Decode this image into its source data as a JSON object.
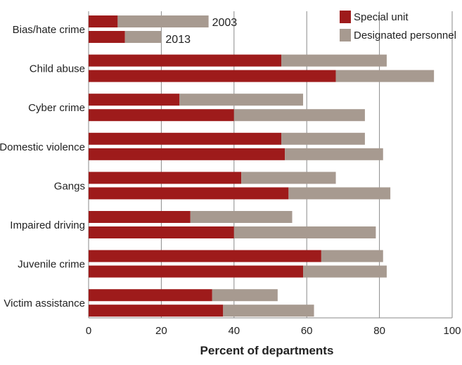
{
  "chart_data": {
    "type": "bar",
    "orientation": "horizontal",
    "stacked": true,
    "categories": [
      "Bias/hate crime",
      "Child abuse",
      "Cyber crime",
      "Domestic violence",
      "Gangs",
      "Impaired driving",
      "Juvenile crime",
      "Victim assistance"
    ],
    "years": [
      "2003",
      "2013"
    ],
    "series": [
      {
        "name": "Special unit",
        "color": "#9e1b1b",
        "values_2003": [
          8,
          53,
          25,
          53,
          42,
          28,
          64,
          34
        ],
        "values_2013": [
          10,
          68,
          40,
          54,
          55,
          40,
          59,
          37
        ]
      },
      {
        "name": "Designated personnel",
        "color": "#a79a90",
        "values_2003": [
          25,
          29,
          34,
          23,
          26,
          28,
          17,
          18
        ],
        "values_2013": [
          10,
          27,
          36,
          27,
          28,
          39,
          23,
          25
        ]
      }
    ],
    "xlabel": "Percent of departments",
    "xlim": [
      0,
      100
    ],
    "xticks": [
      0,
      20,
      40,
      60,
      80,
      100
    ],
    "grid": true,
    "legend_position": "top-right",
    "annotations": [
      "2003",
      "2013"
    ]
  }
}
